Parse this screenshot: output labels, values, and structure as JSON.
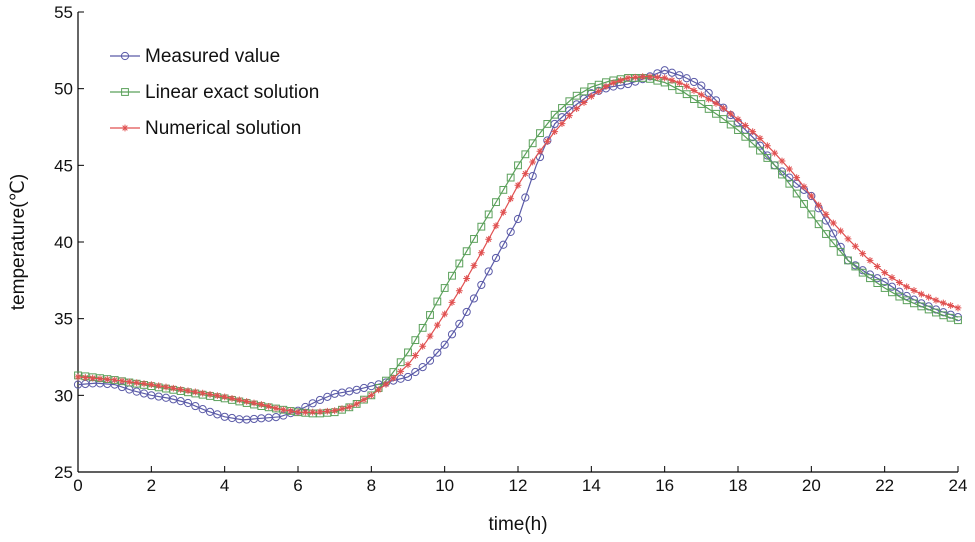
{
  "chart_data": {
    "type": "line",
    "xlabel": "time(h)",
    "ylabel": "temperature(℃)",
    "xlim": [
      0,
      24
    ],
    "ylim": [
      25,
      55
    ],
    "xticks": [
      0,
      2,
      4,
      6,
      8,
      10,
      12,
      14,
      16,
      18,
      20,
      22,
      24
    ],
    "yticks": [
      25,
      30,
      35,
      40,
      45,
      50,
      55
    ],
    "grid": false,
    "legend_position": "top-left",
    "series": [
      {
        "name": "Measured value",
        "color": "#5b5ba8",
        "marker": "circle",
        "points": [
          [
            0,
            30.7
          ],
          [
            0.5,
            30.8
          ],
          [
            1,
            30.7
          ],
          [
            1.5,
            30.3
          ],
          [
            2,
            30.0
          ],
          [
            2.5,
            29.8
          ],
          [
            3,
            29.5
          ],
          [
            3.5,
            29.0
          ],
          [
            4,
            28.6
          ],
          [
            4.5,
            28.4
          ],
          [
            5,
            28.5
          ],
          [
            5.5,
            28.6
          ],
          [
            6,
            29.0
          ],
          [
            6.5,
            29.6
          ],
          [
            7,
            30.1
          ],
          [
            7.5,
            30.3
          ],
          [
            8,
            30.6
          ],
          [
            8.5,
            30.9
          ],
          [
            9,
            31.2
          ],
          [
            9.5,
            32.0
          ],
          [
            10,
            33.3
          ],
          [
            10.5,
            35.0
          ],
          [
            11,
            37.2
          ],
          [
            11.5,
            39.4
          ],
          [
            12,
            41.5
          ],
          [
            12.5,
            45.0
          ],
          [
            13,
            47.7
          ],
          [
            13.5,
            48.8
          ],
          [
            14,
            49.7
          ],
          [
            14.5,
            50.1
          ],
          [
            15,
            50.3
          ],
          [
            15.5,
            50.7
          ],
          [
            16,
            51.2
          ],
          [
            16.5,
            50.8
          ],
          [
            17,
            50.2
          ],
          [
            17.5,
            49.0
          ],
          [
            18,
            47.8
          ],
          [
            18.5,
            46.6
          ],
          [
            19,
            45.0
          ],
          [
            19.5,
            44.0
          ],
          [
            20,
            43.0
          ],
          [
            20.5,
            41.0
          ],
          [
            21,
            38.8
          ],
          [
            21.5,
            38.0
          ],
          [
            22,
            37.4
          ],
          [
            22.5,
            36.6
          ],
          [
            23,
            36.0
          ],
          [
            23.5,
            35.5
          ],
          [
            24,
            35.1
          ]
        ]
      },
      {
        "name": "Linear exact solution",
        "color": "#5aa05a",
        "marker": "square",
        "points": [
          [
            0,
            31.3
          ],
          [
            1,
            31.0
          ],
          [
            2,
            30.6
          ],
          [
            3,
            30.2
          ],
          [
            4,
            29.8
          ],
          [
            5,
            29.3
          ],
          [
            6,
            28.9
          ],
          [
            6.5,
            28.8
          ],
          [
            7,
            28.9
          ],
          [
            7.5,
            29.3
          ],
          [
            8,
            30.0
          ],
          [
            8.5,
            31.2
          ],
          [
            9,
            32.8
          ],
          [
            9.5,
            34.8
          ],
          [
            10,
            37.0
          ],
          [
            10.5,
            39.0
          ],
          [
            11,
            41.0
          ],
          [
            11.5,
            43.0
          ],
          [
            12,
            45.0
          ],
          [
            12.5,
            46.8
          ],
          [
            13,
            48.3
          ],
          [
            13.5,
            49.4
          ],
          [
            14,
            50.1
          ],
          [
            14.5,
            50.5
          ],
          [
            15,
            50.7
          ],
          [
            15.5,
            50.7
          ],
          [
            16,
            50.4
          ],
          [
            16.5,
            49.8
          ],
          [
            17,
            49.0
          ],
          [
            17.5,
            48.2
          ],
          [
            18,
            47.3
          ],
          [
            18.5,
            46.2
          ],
          [
            19,
            45.0
          ],
          [
            19.5,
            43.5
          ],
          [
            20,
            41.8
          ],
          [
            20.5,
            40.2
          ],
          [
            21,
            38.8
          ],
          [
            21.5,
            37.8
          ],
          [
            22,
            37.0
          ],
          [
            22.5,
            36.3
          ],
          [
            23,
            35.8
          ],
          [
            23.5,
            35.3
          ],
          [
            24,
            34.9
          ]
        ]
      },
      {
        "name": "Numerical solution",
        "color": "#e05050",
        "marker": "star",
        "points": [
          [
            0,
            31.2
          ],
          [
            1,
            31.0
          ],
          [
            2,
            30.7
          ],
          [
            3,
            30.3
          ],
          [
            4,
            29.9
          ],
          [
            5,
            29.4
          ],
          [
            5.5,
            29.1
          ],
          [
            6,
            28.9
          ],
          [
            6.5,
            28.9
          ],
          [
            7,
            29.0
          ],
          [
            7.5,
            29.3
          ],
          [
            8,
            30.0
          ],
          [
            8.5,
            30.9
          ],
          [
            9,
            32.0
          ],
          [
            9.5,
            33.5
          ],
          [
            10,
            35.3
          ],
          [
            10.5,
            37.2
          ],
          [
            11,
            39.3
          ],
          [
            11.5,
            41.5
          ],
          [
            12,
            43.7
          ],
          [
            12.5,
            45.6
          ],
          [
            13,
            47.2
          ],
          [
            13.5,
            48.5
          ],
          [
            14,
            49.5
          ],
          [
            14.5,
            50.3
          ],
          [
            15,
            50.7
          ],
          [
            15.5,
            50.8
          ],
          [
            16,
            50.7
          ],
          [
            16.5,
            50.3
          ],
          [
            17,
            49.6
          ],
          [
            17.5,
            48.9
          ],
          [
            18,
            48.0
          ],
          [
            18.5,
            47.0
          ],
          [
            19,
            45.8
          ],
          [
            19.5,
            44.5
          ],
          [
            20,
            43.0
          ],
          [
            20.5,
            41.5
          ],
          [
            21,
            40.2
          ],
          [
            21.5,
            39.0
          ],
          [
            22,
            38.0
          ],
          [
            22.5,
            37.2
          ],
          [
            23,
            36.6
          ],
          [
            23.5,
            36.1
          ],
          [
            24,
            35.7
          ]
        ]
      }
    ]
  }
}
